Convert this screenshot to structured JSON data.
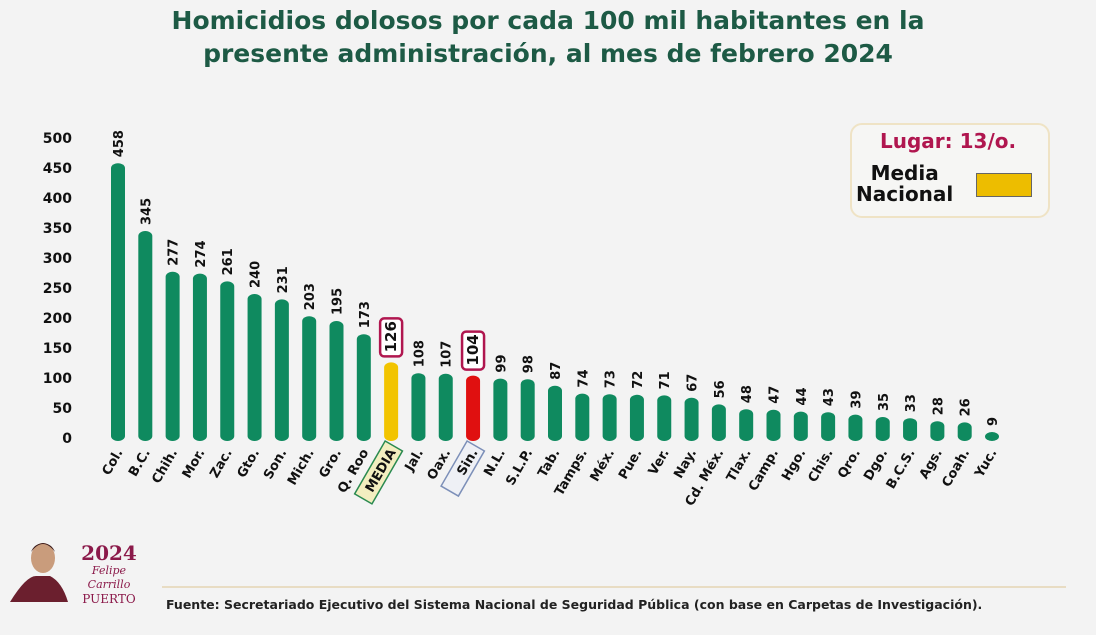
{
  "chart_data": {
    "type": "bar",
    "title": "Homicidios dolosos por cada 100 mil habitantes en la presente administración, al mes de febrero 2024",
    "title_lines": [
      "Homicidios dolosos por cada 100 mil habitantes en la",
      "presente administración, al mes de febrero 2024"
    ],
    "categories": [
      "Col.",
      "B.C.",
      "Chih.",
      "Mor.",
      "Zac.",
      "Gto.",
      "Son.",
      "Mich.",
      "Gro.",
      "Q. Roo",
      "MEDIA",
      "Jal.",
      "Oax.",
      "Sin.",
      "N.L.",
      "S.L.P.",
      "Tab.",
      "Tamps.",
      "Méx.",
      "Pue.",
      "Ver.",
      "Nay.",
      "Cd. Méx.",
      "Tlax.",
      "Camp.",
      "Hgo.",
      "Chis.",
      "Qro.",
      "Dgo.",
      "B.C.S.",
      "Ags.",
      "Coah.",
      "Yuc."
    ],
    "values": [
      458,
      345,
      277,
      274,
      261,
      240,
      231,
      203,
      195,
      173,
      126,
      108,
      107,
      104,
      99,
      98,
      87,
      74,
      73,
      72,
      71,
      67,
      56,
      48,
      47,
      44,
      43,
      39,
      35,
      33,
      28,
      26,
      9
    ],
    "highlights": {
      "MEDIA": "#f2c400",
      "Sin.": "#e01010"
    },
    "default_color": "#0f8a5f",
    "ylim": [
      0,
      500
    ],
    "yticks": [
      0,
      50,
      100,
      150,
      200,
      250,
      300,
      350,
      400,
      450,
      500
    ],
    "xlabel": "",
    "ylabel": "",
    "grid": false,
    "legend": {
      "position": "top-right",
      "rank": "Lugar: 13/o.",
      "label_lines": [
        "Media",
        "Nacional"
      ],
      "color": "#edbd00"
    }
  },
  "footer": {
    "source": "Fuente:  Secretariado Ejecutivo del Sistema Nacional de Seguridad Pública (con base en Carpetas de Investigación).",
    "logo_year": "2024",
    "logo_name": "Felipe Carrillo",
    "logo_surname": "PUERTO"
  }
}
